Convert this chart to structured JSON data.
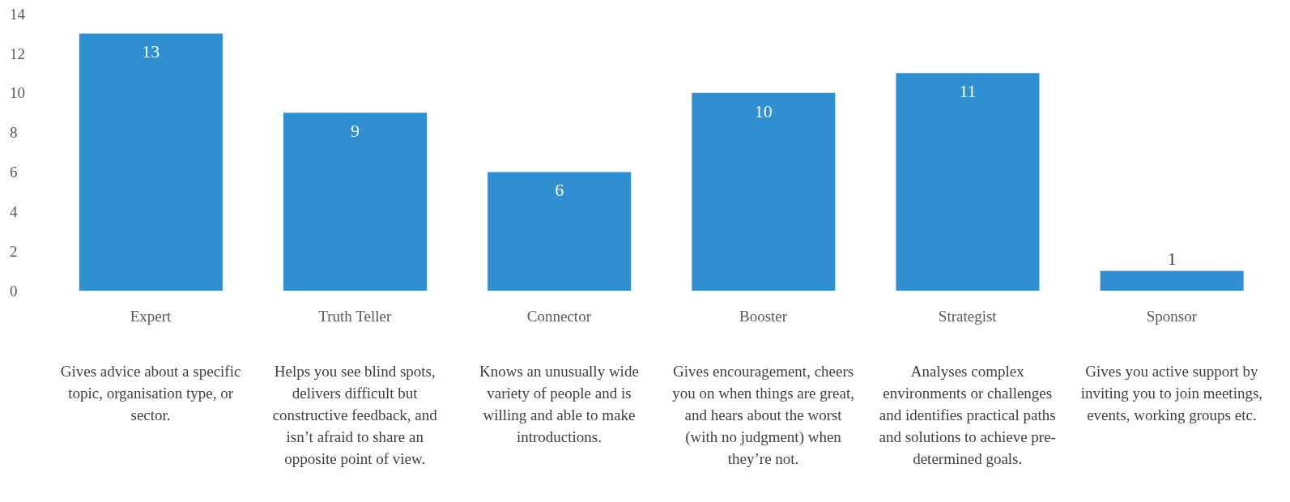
{
  "chart_data": {
    "type": "bar",
    "categories": [
      "Expert",
      "Truth Teller",
      "Connector",
      "Booster",
      "Strategist",
      "Sponsor"
    ],
    "values": [
      13,
      9,
      6,
      10,
      11,
      1
    ],
    "color": "#2f8fd1",
    "ylim": [
      0,
      14
    ],
    "yticks": [
      0,
      2,
      4,
      6,
      8,
      10,
      12,
      14
    ],
    "data_labels": true,
    "annotations": [
      "Gives advice about a specific topic, organisation type, or sector.",
      "Helps you see blind spots, delivers difficult but constructive feedback, and isn’t afraid to share an opposite point of view.",
      "Knows an unusually wide variety of people and is willing and able to make introductions.",
      "Gives encouragement, cheers you on when things are great, and hears about the worst (with no judgment) when they’re not.",
      "Analyses complex environments or challenges and identifies practical paths and solutions to achieve pre-determined goals.",
      "Gives you active support by inviting you to join meetings, events, working groups etc."
    ]
  }
}
